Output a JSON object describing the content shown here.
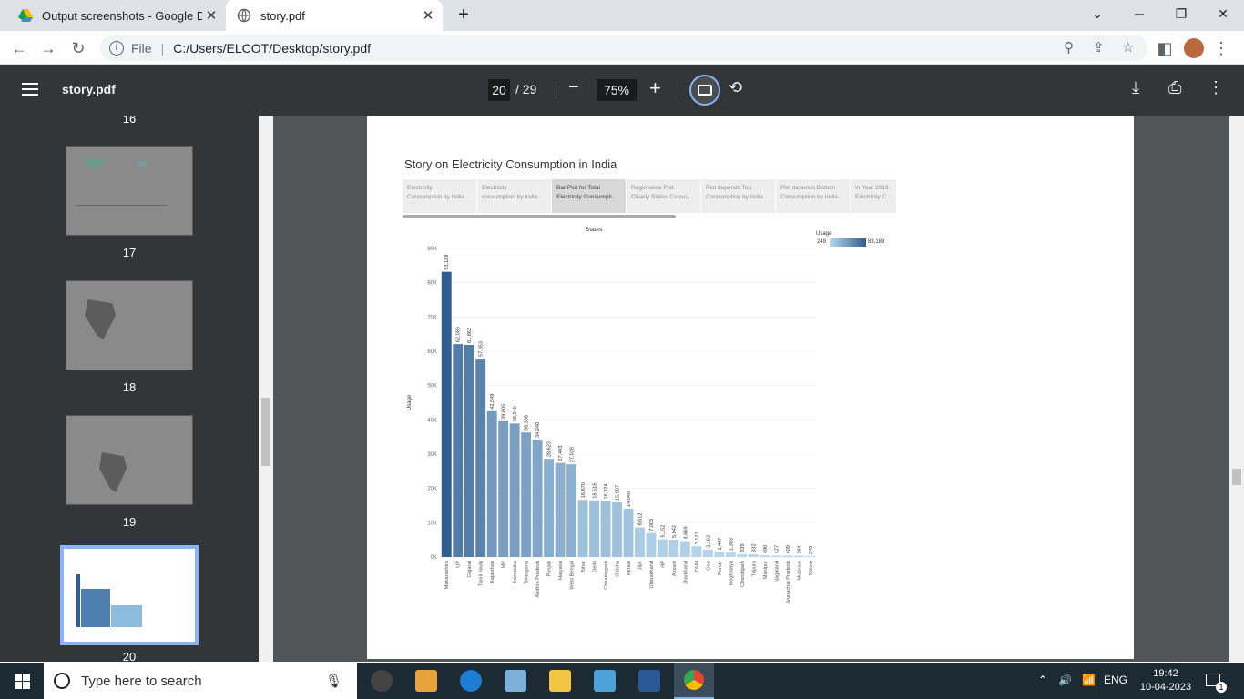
{
  "browser": {
    "tabs": [
      {
        "title": "Output screenshots - Google Dri",
        "active": false,
        "favicon": "google-drive-icon"
      },
      {
        "title": "story.pdf",
        "active": true,
        "favicon": "globe-icon"
      }
    ],
    "address": {
      "scheme_label": "File",
      "url": "C:/Users/ELCOT/Desktop/story.pdf"
    }
  },
  "pdf_viewer": {
    "file_name": "story.pdf",
    "current_page": "20",
    "total_pages": "/ 29",
    "zoom": "75%",
    "thumbnails": [
      "16",
      "17",
      "18",
      "19",
      "20"
    ],
    "selected_page": "20"
  },
  "story": {
    "title": "Story on Electricity Consumption in India",
    "points": [
      {
        "line1": "Electricity",
        "line2": "Consumption by India.."
      },
      {
        "line1": "Electricity",
        "line2": "consumption by India.."
      },
      {
        "line1": "Bar Plot for Total",
        "line2": "Electricity Consumpti.."
      },
      {
        "line1": "Regionwise Plot",
        "line2": "Clearly States Consu.."
      },
      {
        "line1": "Plot depends Top",
        "line2": "Consumption by India.."
      },
      {
        "line1": "Plot depends Bottom",
        "line2": "Consumption by India.."
      },
      {
        "line1": "In Year 2019,",
        "line2": "Electricity C.."
      }
    ],
    "active_point": 2
  },
  "chart_data": {
    "type": "bar",
    "title": "States",
    "xlabel": "",
    "ylabel": "Usage",
    "ylim": [
      0,
      90000
    ],
    "yticks": [
      "0K",
      "10K",
      "20K",
      "30K",
      "40K",
      "50K",
      "60K",
      "70K",
      "80K",
      "90K"
    ],
    "legend": {
      "title": "Usage",
      "min": "249",
      "max": "83,188",
      "placement": "top-right"
    },
    "color_low": "#b9d8ee",
    "color_high": "#2f5d8e",
    "categories": [
      "Maharashtra",
      "UP",
      "Gujarat",
      "Tamil Nadu",
      "Rajasthan",
      "MP",
      "Karnataka",
      "Telangana",
      "Andhra Pradesh",
      "Punjab",
      "Haryana",
      "West Bengal",
      "Bihar",
      "Delhi",
      "Chhattisgarh",
      "Odisha",
      "Kerala",
      "J&K",
      "Uttarakhand",
      "HP",
      "Assam",
      "Jharkhand",
      "DNH",
      "Goa",
      "Pondy",
      "Meghalaya",
      "Chandigarh",
      "Tripura",
      "Manipur",
      "Nagaland",
      "Arunachal Pradesh",
      "Mizoram",
      "Sikkim"
    ],
    "values": [
      83188,
      62086,
      61862,
      57853,
      42549,
      39605,
      38940,
      36336,
      34240,
      28623,
      27443,
      27028,
      16670,
      16516,
      16324,
      15907,
      14040,
      8612,
      7005,
      5152,
      5042,
      4669,
      3121,
      2162,
      1447,
      1303,
      839,
      832,
      490,
      427,
      409,
      384,
      249
    ],
    "value_labels": [
      "83,188",
      "62,086",
      "61,862",
      "57,853",
      "42,549",
      "39,605",
      "38,940",
      "36,336",
      "34,240",
      "28,623",
      "27,443",
      "27,028",
      "16,670",
      "16,516",
      "16,324",
      "15,907",
      "14,040",
      "8,612",
      "7,005",
      "5,152",
      "5,042",
      "4,669",
      "3,121",
      "2,162",
      "1,447",
      "1,303",
      "839",
      "832",
      "490",
      "427",
      "409",
      "384",
      "249"
    ]
  },
  "taskbar": {
    "search_placeholder": "Type here to search",
    "language": "ENG",
    "time": "19:42",
    "date": "10-04-2023",
    "notification_count": "1"
  }
}
